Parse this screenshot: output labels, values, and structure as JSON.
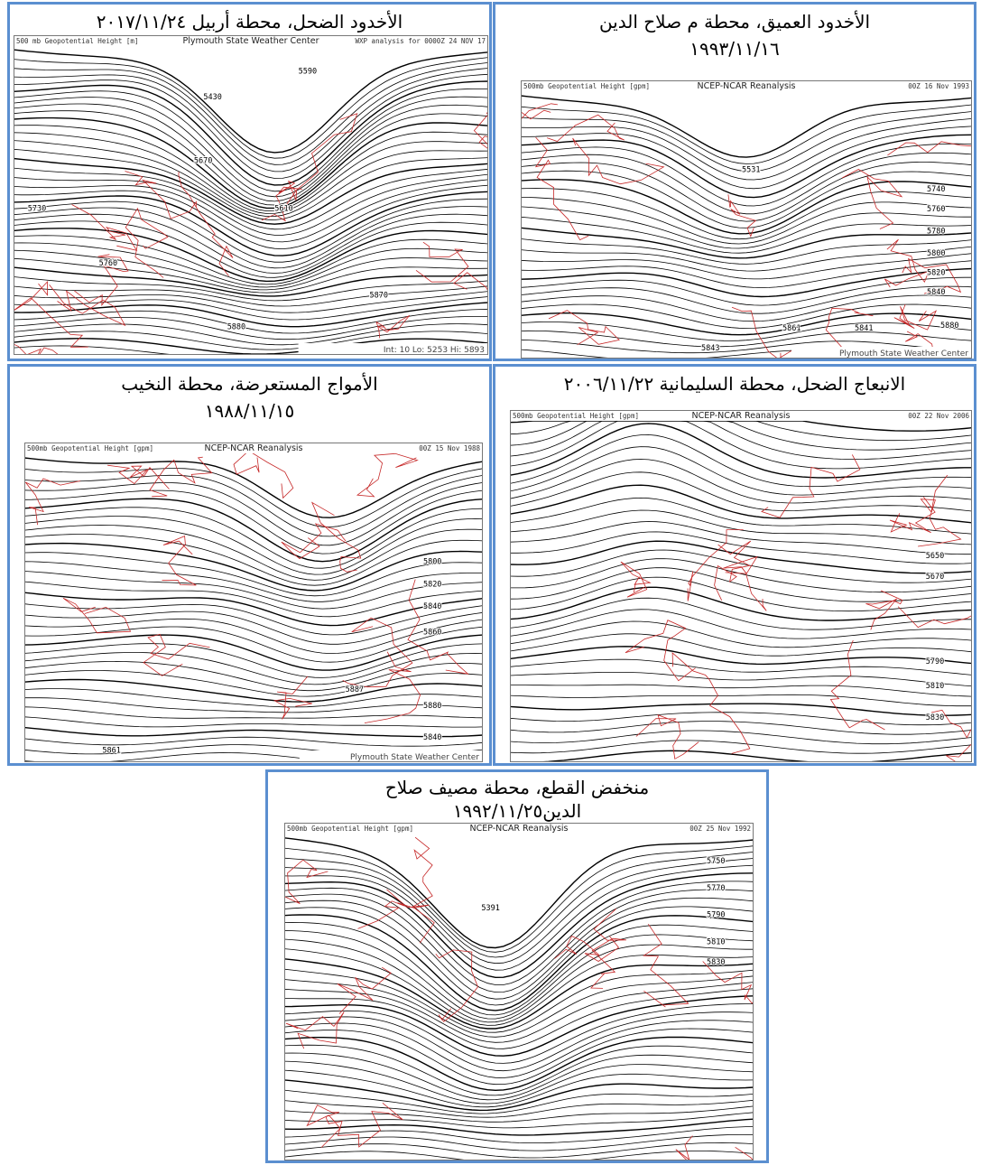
{
  "panels": [
    {
      "caption": [
        "الأخدود الضحل، محطة أربيل ٢٠١٧/١١/٢٤"
      ],
      "header": {
        "left": "500 mb Geopotential Height [m]",
        "center": "Plymouth State Weather Center",
        "right": "WXP analysis for 0000Z 24 NOV 17",
        "footer": "Int: 10 Lo: 5253 Hi: 5893"
      },
      "labels": [
        "5430",
        "5610",
        "5730",
        "5760",
        "5880",
        "5870",
        "5590",
        "5670"
      ]
    },
    {
      "caption": [
        "الأخدود العميق، محطة م صلاح الدين",
        "١٩٩٣/١١/١٦"
      ],
      "header": {
        "left": "500mb Geopotential Height [gpm]",
        "center": "NCEP-NCAR Reanalysis",
        "right": "00Z 16 Nov 1993",
        "footer": "Plymouth State Weather Center"
      },
      "labels": [
        "5531",
        "5740",
        "5760",
        "5780",
        "5800",
        "5820",
        "5840",
        "5861",
        "5841",
        "5843",
        "5880"
      ]
    },
    {
      "caption": [
        "الأمواج المستعرضة، محطة النخيب",
        "١٩٨٨/١١/١٥"
      ],
      "header": {
        "left": "500mb Geopotential Height [gpm]",
        "center": "NCEP-NCAR Reanalysis",
        "right": "00Z 15 Nov 1988",
        "footer": "Plymouth State Weather Center"
      },
      "labels": [
        "5800",
        "5820",
        "5840",
        "5860",
        "5887",
        "5880",
        "5840",
        "5861"
      ]
    },
    {
      "caption": [
        "الانبعاج الضحل، محطة السليمانية ٢٠٠٦/١١/٢٢"
      ],
      "header": {
        "left": "500mb Geopotential Height [gpm]",
        "center": "NCEP-NCAR Reanalysis",
        "right": "00Z 22 Nov 2006"
      },
      "labels": [
        "5650",
        "5670",
        "5790",
        "5810",
        "5830"
      ]
    },
    {
      "caption": [
        "منخفض القطع، محطة مصيف صلاح",
        "الدين١٩٩٢/١١/٢٥"
      ],
      "header": {
        "left": "500mb Geopotential Height [gpm]",
        "center": "NCEP-NCAR Reanalysis",
        "right": "00Z 25 Nov 1992"
      },
      "labels": [
        "5391",
        "5750",
        "5770",
        "5790",
        "5810",
        "5830"
      ]
    }
  ]
}
